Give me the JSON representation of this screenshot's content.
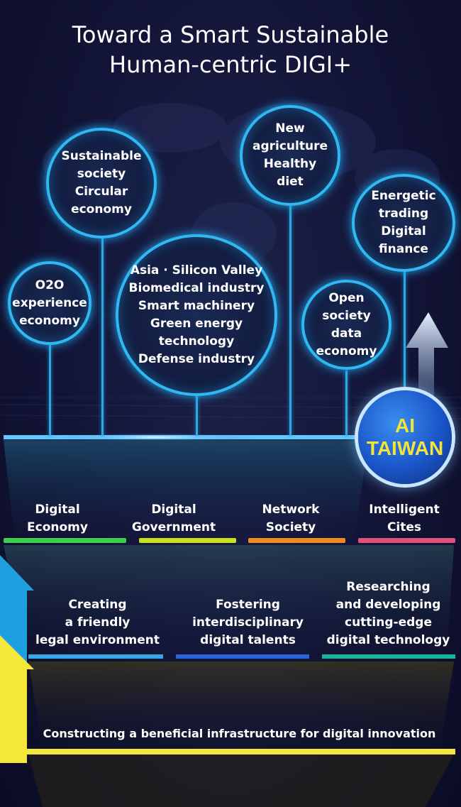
{
  "title": {
    "line1": "Toward a Smart Sustainable",
    "line2": "Human-centric DIGI+"
  },
  "circles": {
    "o2o": [
      "O2O",
      "experience",
      "economy"
    ],
    "sustainable": [
      "Sustainable",
      "society",
      "Circular",
      "economy"
    ],
    "industry": [
      "Asia · Silicon Valley",
      "Biomedical industry",
      "Smart machinery",
      "Green energy",
      "technology",
      "Defense industry"
    ],
    "agriculture": [
      "New",
      "agriculture",
      "Healthy",
      "diet"
    ],
    "open_data": [
      "Open",
      "society",
      "data",
      "economy"
    ],
    "finance": [
      "Energetic",
      "trading",
      "Digital",
      "finance"
    ]
  },
  "badge": {
    "line1": "AI",
    "line2": "TAIWAN"
  },
  "pillars": [
    {
      "line1": "Digital",
      "line2": "Economy",
      "color": "#3ccf4e"
    },
    {
      "line1": "Digital",
      "line2": "Government",
      "color": "#c8e020"
    },
    {
      "line1": "Network",
      "line2": "Society",
      "color": "#ef8a22"
    },
    {
      "line1": "Intelligent",
      "line2": "Cites",
      "color": "#e0507a"
    }
  ],
  "foundations": [
    {
      "lines": [
        "Creating",
        "a friendly",
        "legal environment"
      ],
      "color": "#3aa6e8"
    },
    {
      "lines": [
        "Fostering",
        "interdisciplinary",
        "digital talents"
      ],
      "color": "#2a62d8"
    },
    {
      "lines": [
        "Researching",
        "and developing",
        "cutting-edge",
        "digital technology"
      ],
      "color": "#18b49a"
    }
  ],
  "infrastructure": {
    "label": "Constructing a beneficial infrastructure for digital innovation",
    "color": "#f5e63a"
  },
  "colors": {
    "circle_border": "#32b8f0",
    "arrow_blue": "#1e9fe0",
    "arrow_yellow": "#f5e63a",
    "badge_text": "#f3e43a"
  }
}
